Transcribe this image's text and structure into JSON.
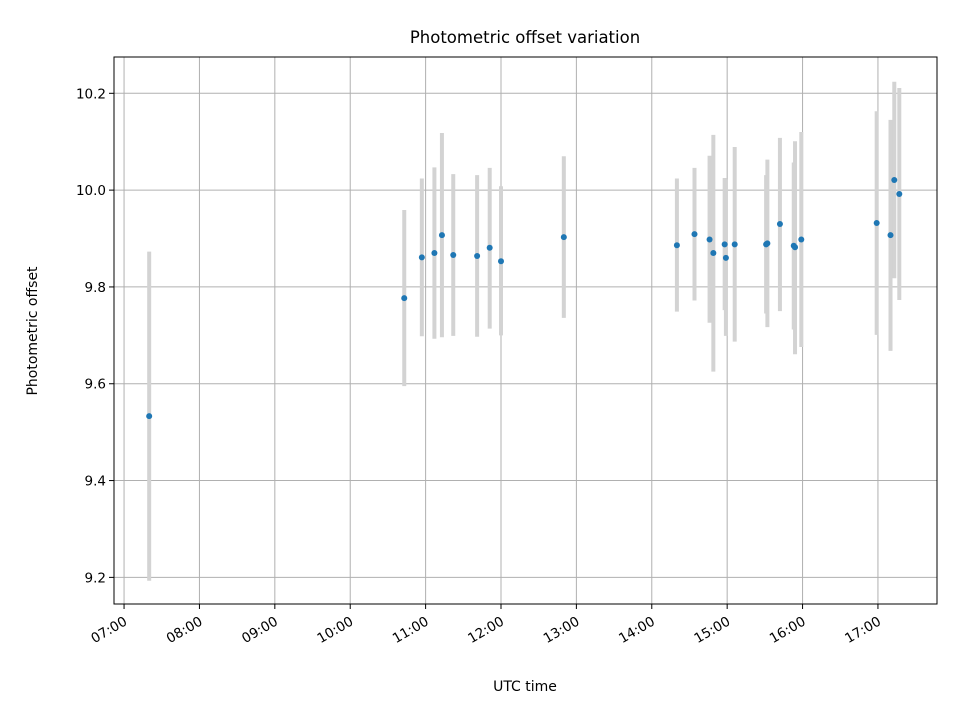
{
  "chart_data": {
    "type": "scatter",
    "title": "Photometric offset variation",
    "xlabel": "UTC time",
    "ylabel": "Photometric offset",
    "x_tick_labels": [
      "07:00",
      "08:00",
      "09:00",
      "10:00",
      "11:00",
      "12:00",
      "13:00",
      "14:00",
      "15:00",
      "16:00",
      "17:00"
    ],
    "y_tick_labels": [
      "9.2",
      "9.4",
      "9.6",
      "9.8",
      "10.0",
      "10.2"
    ],
    "xlim": [
      "06:52",
      "17:47"
    ],
    "ylim": [
      9.145,
      10.275
    ],
    "grid": true,
    "x_unit": "UTC time (HH:MM)",
    "colors": {
      "point": "#1f77b4",
      "errorbar": "#d3d3d3",
      "grid": "#b0b0b0",
      "axes": "#000000"
    },
    "points": [
      {
        "x": "07:20",
        "y": 9.533,
        "ylow": 9.193,
        "yhigh": 9.873
      },
      {
        "x": "10:43",
        "y": 9.777,
        "ylow": 9.595,
        "yhigh": 9.959
      },
      {
        "x": "10:57",
        "y": 9.861,
        "ylow": 9.698,
        "yhigh": 10.024
      },
      {
        "x": "11:07",
        "y": 9.87,
        "ylow": 9.693,
        "yhigh": 10.047
      },
      {
        "x": "11:13",
        "y": 9.907,
        "ylow": 9.696,
        "yhigh": 10.118
      },
      {
        "x": "11:22",
        "y": 9.866,
        "ylow": 9.699,
        "yhigh": 10.033
      },
      {
        "x": "11:41",
        "y": 9.864,
        "ylow": 9.697,
        "yhigh": 10.031
      },
      {
        "x": "11:51",
        "y": 9.881,
        "ylow": 9.714,
        "yhigh": 10.046
      },
      {
        "x": "12:00",
        "y": 9.853,
        "ylow": 9.7,
        "yhigh": 10.008
      },
      {
        "x": "12:50",
        "y": 9.903,
        "ylow": 9.736,
        "yhigh": 10.07
      },
      {
        "x": "14:20",
        "y": 9.886,
        "ylow": 9.749,
        "yhigh": 10.024
      },
      {
        "x": "14:34",
        "y": 9.909,
        "ylow": 9.772,
        "yhigh": 10.046
      },
      {
        "x": "14:46",
        "y": 9.898,
        "ylow": 9.726,
        "yhigh": 10.071
      },
      {
        "x": "14:49",
        "y": 9.87,
        "ylow": 9.625,
        "yhigh": 10.114
      },
      {
        "x": "14:58",
        "y": 9.888,
        "ylow": 9.752,
        "yhigh": 10.025
      },
      {
        "x": "14:59",
        "y": 9.86,
        "ylow": 9.699,
        "yhigh": 10.022
      },
      {
        "x": "15:06",
        "y": 9.888,
        "ylow": 9.687,
        "yhigh": 10.089
      },
      {
        "x": "15:31",
        "y": 9.888,
        "ylow": 9.745,
        "yhigh": 10.031
      },
      {
        "x": "15:32",
        "y": 9.89,
        "ylow": 9.717,
        "yhigh": 10.063
      },
      {
        "x": "15:42",
        "y": 9.93,
        "ylow": 9.75,
        "yhigh": 10.108
      },
      {
        "x": "15:53",
        "y": 9.885,
        "ylow": 9.712,
        "yhigh": 10.057
      },
      {
        "x": "15:54",
        "y": 9.882,
        "ylow": 9.661,
        "yhigh": 10.101
      },
      {
        "x": "15:59",
        "y": 9.898,
        "ylow": 9.676,
        "yhigh": 10.12
      },
      {
        "x": "16:59",
        "y": 9.932,
        "ylow": 9.701,
        "yhigh": 10.163
      },
      {
        "x": "17:10",
        "y": 9.907,
        "ylow": 9.668,
        "yhigh": 10.145
      },
      {
        "x": "17:13",
        "y": 10.021,
        "ylow": 9.818,
        "yhigh": 10.224
      },
      {
        "x": "17:17",
        "y": 9.992,
        "ylow": 9.773,
        "yhigh": 10.211
      }
    ]
  }
}
